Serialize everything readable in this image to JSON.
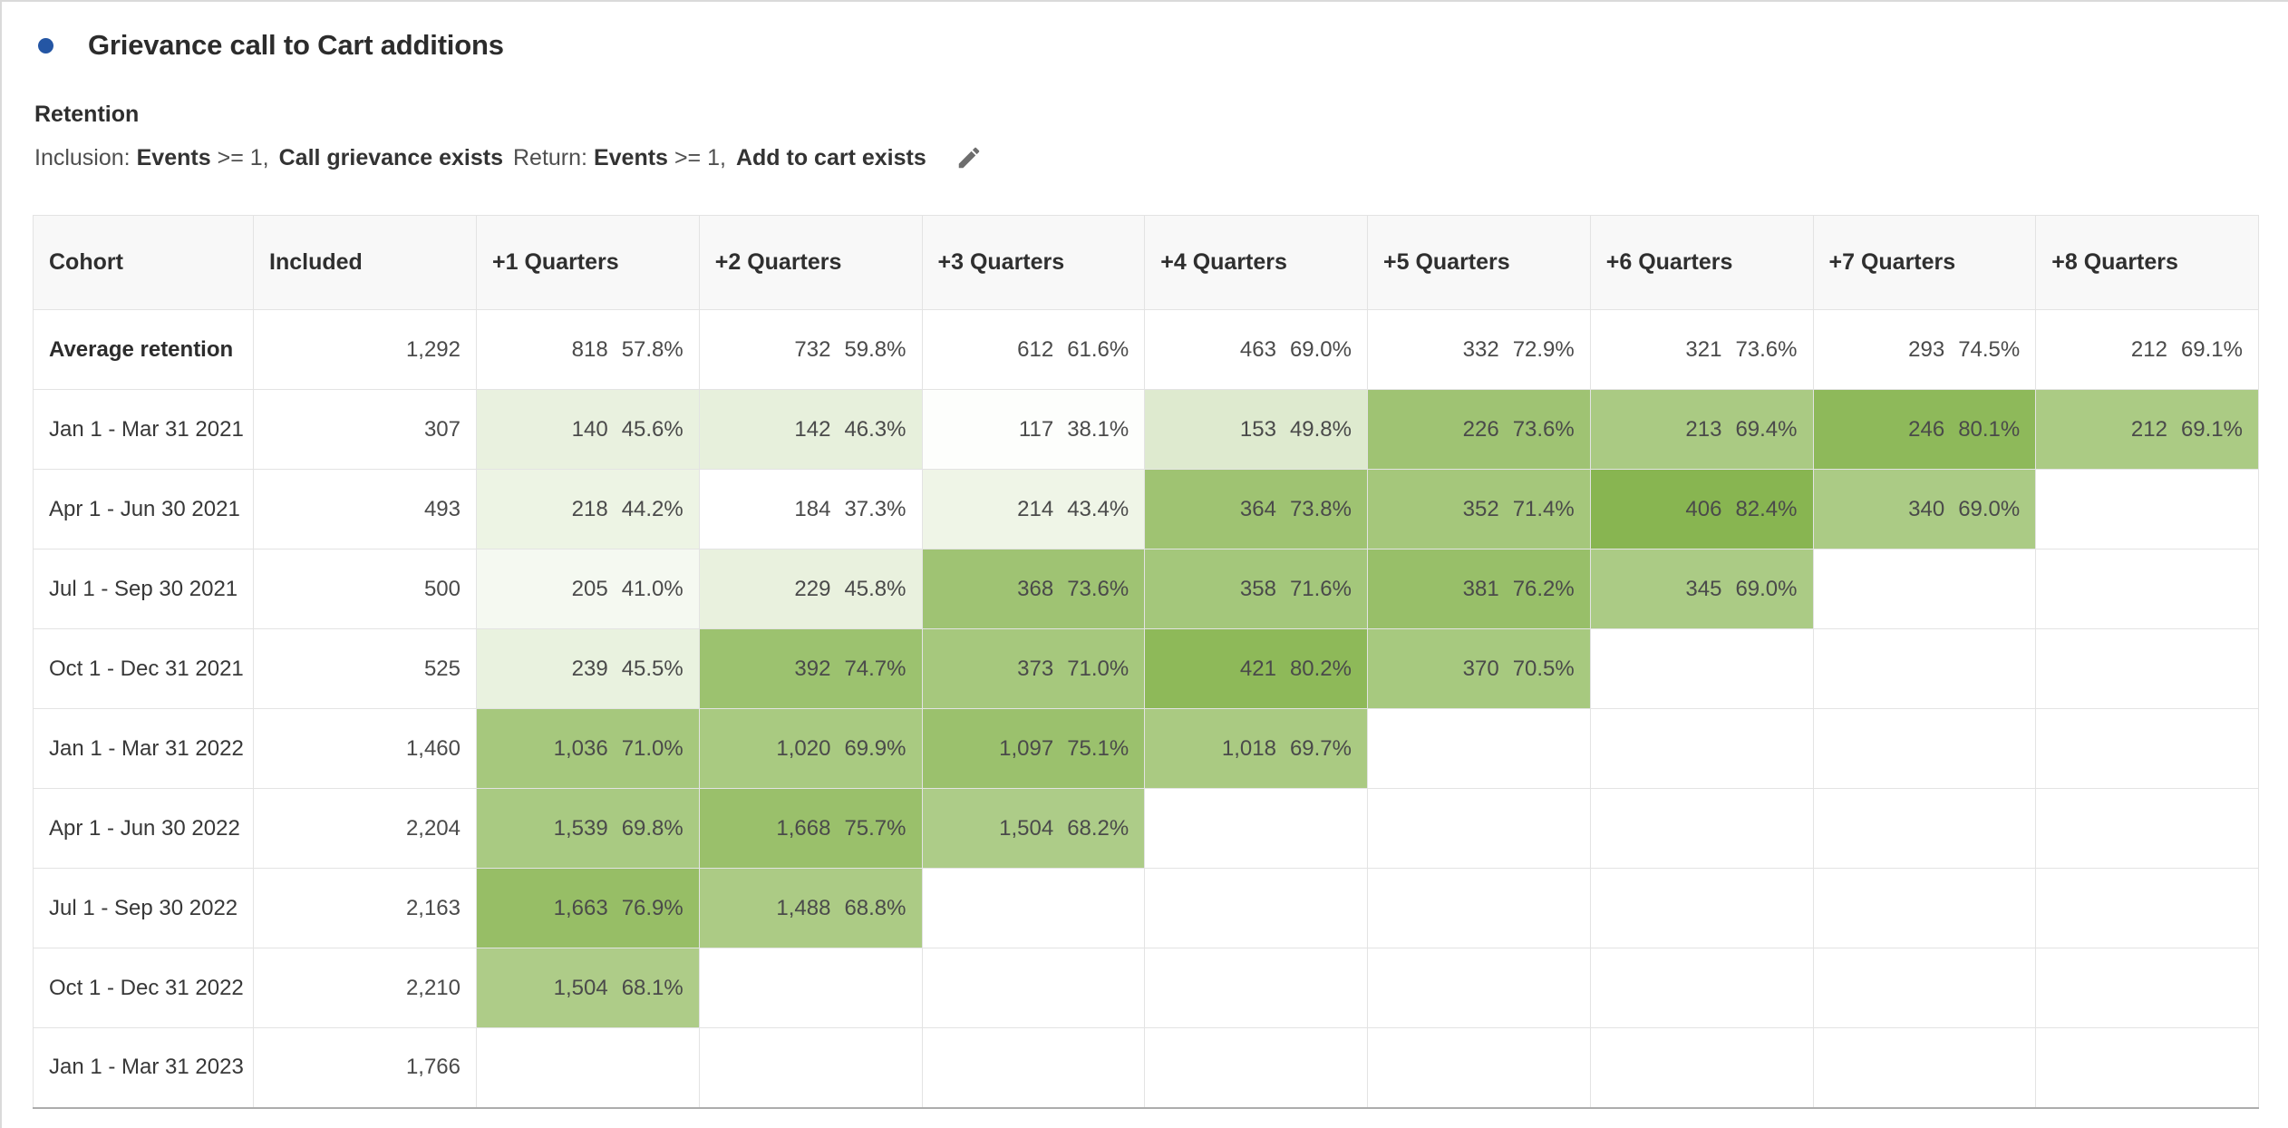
{
  "header": {
    "bullet_color": "#2456a4",
    "title": "Grievance call to Cart additions",
    "subtitle": "Retention",
    "criteria": {
      "inclusion_label": "Inclusion:",
      "inclusion_event": "Events",
      "inclusion_op": ">= 1,",
      "inclusion_name": "Call grievance exists",
      "return_label": "Return:",
      "return_event": "Events",
      "return_op": ">= 1,",
      "return_name": "Add to cart exists"
    },
    "edit_icon": "pencil-icon"
  },
  "table": {
    "columns": [
      "Cohort",
      "Included",
      "+1 Quarters",
      "+2 Quarters",
      "+3 Quarters",
      "+4 Quarters",
      "+5 Quarters",
      "+6 Quarters",
      "+7 Quarters",
      "+8 Quarters"
    ],
    "color_scale": {
      "min_pct": 37.3,
      "max_pct": 82.4,
      "min_color": "#ffffff",
      "max_color": "#88b551"
    },
    "average_row": {
      "label": "Average retention",
      "included": "1,292",
      "cells": [
        {
          "count": "818",
          "pct": "57.8%"
        },
        {
          "count": "732",
          "pct": "59.8%"
        },
        {
          "count": "612",
          "pct": "61.6%"
        },
        {
          "count": "463",
          "pct": "69.0%"
        },
        {
          "count": "332",
          "pct": "72.9%"
        },
        {
          "count": "321",
          "pct": "73.6%"
        },
        {
          "count": "293",
          "pct": "74.5%"
        },
        {
          "count": "212",
          "pct": "69.1%"
        }
      ]
    },
    "rows": [
      {
        "label": "Jan 1 - Mar 31 2021",
        "included": "307",
        "cells": [
          {
            "count": "140",
            "pct": "45.6%"
          },
          {
            "count": "142",
            "pct": "46.3%"
          },
          {
            "count": "117",
            "pct": "38.1%"
          },
          {
            "count": "153",
            "pct": "49.8%"
          },
          {
            "count": "226",
            "pct": "73.6%"
          },
          {
            "count": "213",
            "pct": "69.4%"
          },
          {
            "count": "246",
            "pct": "80.1%"
          },
          {
            "count": "212",
            "pct": "69.1%"
          }
        ]
      },
      {
        "label": "Apr 1 - Jun 30 2021",
        "included": "493",
        "cells": [
          {
            "count": "218",
            "pct": "44.2%"
          },
          {
            "count": "184",
            "pct": "37.3%"
          },
          {
            "count": "214",
            "pct": "43.4%"
          },
          {
            "count": "364",
            "pct": "73.8%"
          },
          {
            "count": "352",
            "pct": "71.4%"
          },
          {
            "count": "406",
            "pct": "82.4%"
          },
          {
            "count": "340",
            "pct": "69.0%"
          }
        ]
      },
      {
        "label": "Jul 1 - Sep 30 2021",
        "included": "500",
        "cells": [
          {
            "count": "205",
            "pct": "41.0%"
          },
          {
            "count": "229",
            "pct": "45.8%"
          },
          {
            "count": "368",
            "pct": "73.6%"
          },
          {
            "count": "358",
            "pct": "71.6%"
          },
          {
            "count": "381",
            "pct": "76.2%"
          },
          {
            "count": "345",
            "pct": "69.0%"
          }
        ]
      },
      {
        "label": "Oct 1 - Dec 31 2021",
        "included": "525",
        "cells": [
          {
            "count": "239",
            "pct": "45.5%"
          },
          {
            "count": "392",
            "pct": "74.7%"
          },
          {
            "count": "373",
            "pct": "71.0%"
          },
          {
            "count": "421",
            "pct": "80.2%"
          },
          {
            "count": "370",
            "pct": "70.5%"
          }
        ]
      },
      {
        "label": "Jan 1 - Mar 31 2022",
        "included": "1,460",
        "cells": [
          {
            "count": "1,036",
            "pct": "71.0%"
          },
          {
            "count": "1,020",
            "pct": "69.9%"
          },
          {
            "count": "1,097",
            "pct": "75.1%"
          },
          {
            "count": "1,018",
            "pct": "69.7%"
          }
        ]
      },
      {
        "label": "Apr 1 - Jun 30 2022",
        "included": "2,204",
        "cells": [
          {
            "count": "1,539",
            "pct": "69.8%"
          },
          {
            "count": "1,668",
            "pct": "75.7%"
          },
          {
            "count": "1,504",
            "pct": "68.2%"
          }
        ]
      },
      {
        "label": "Jul 1 - Sep 30 2022",
        "included": "2,163",
        "cells": [
          {
            "count": "1,663",
            "pct": "76.9%"
          },
          {
            "count": "1,488",
            "pct": "68.8%"
          }
        ]
      },
      {
        "label": "Oct 1 - Dec 31 2022",
        "included": "2,210",
        "cells": [
          {
            "count": "1,504",
            "pct": "68.1%"
          }
        ]
      },
      {
        "label": "Jan 1 - Mar 31 2023",
        "included": "1,766",
        "cells": []
      }
    ]
  }
}
